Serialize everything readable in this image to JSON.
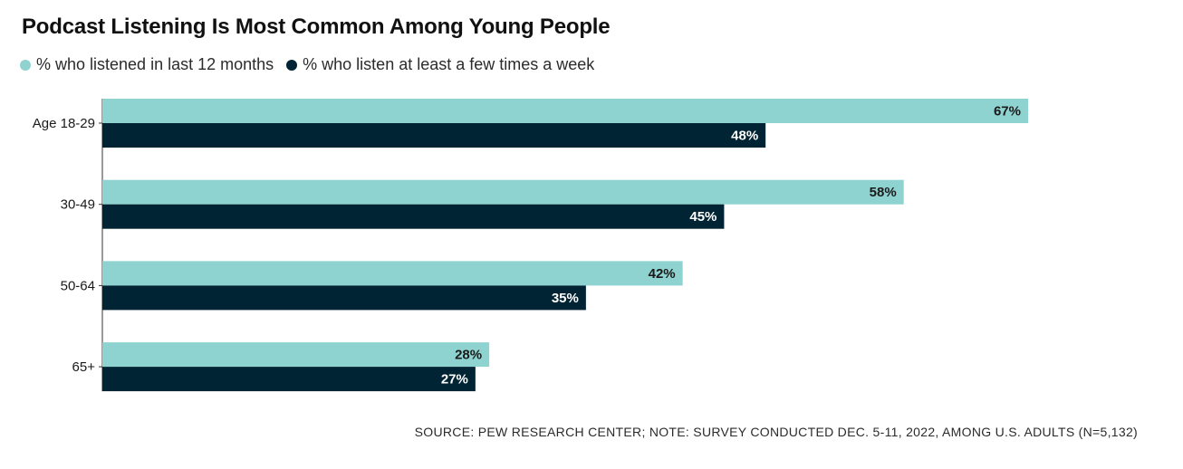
{
  "title": "Podcast Listening Is Most Common Among Young People",
  "source": "SOURCE: PEW RESEARCH CENTER; NOTE: SURVEY CONDUCTED DEC. 5-11, 2022, AMONG U.S. ADULTS (N=5,132)",
  "colors": {
    "light": "#8fd3d0",
    "dark": "#002433",
    "axis": "#333333"
  },
  "chart_data": {
    "type": "bar",
    "orientation": "horizontal",
    "title": "Podcast Listening Is Most Common Among Young People",
    "categories": [
      "Age 18-29",
      "30-49",
      "50-64",
      "65+"
    ],
    "series": [
      {
        "name": "% who listened in last 12 months",
        "values": [
          67,
          58,
          42,
          28
        ],
        "labels": [
          "67%",
          "58%",
          "42%",
          "28%"
        ]
      },
      {
        "name": "% who listen at least a few times a week",
        "values": [
          48,
          45,
          35,
          27
        ],
        "labels": [
          "48%",
          "45%",
          "35%",
          "27%"
        ]
      }
    ],
    "xlim": [
      0,
      67
    ],
    "grid": false,
    "legend_position": "top-left"
  }
}
